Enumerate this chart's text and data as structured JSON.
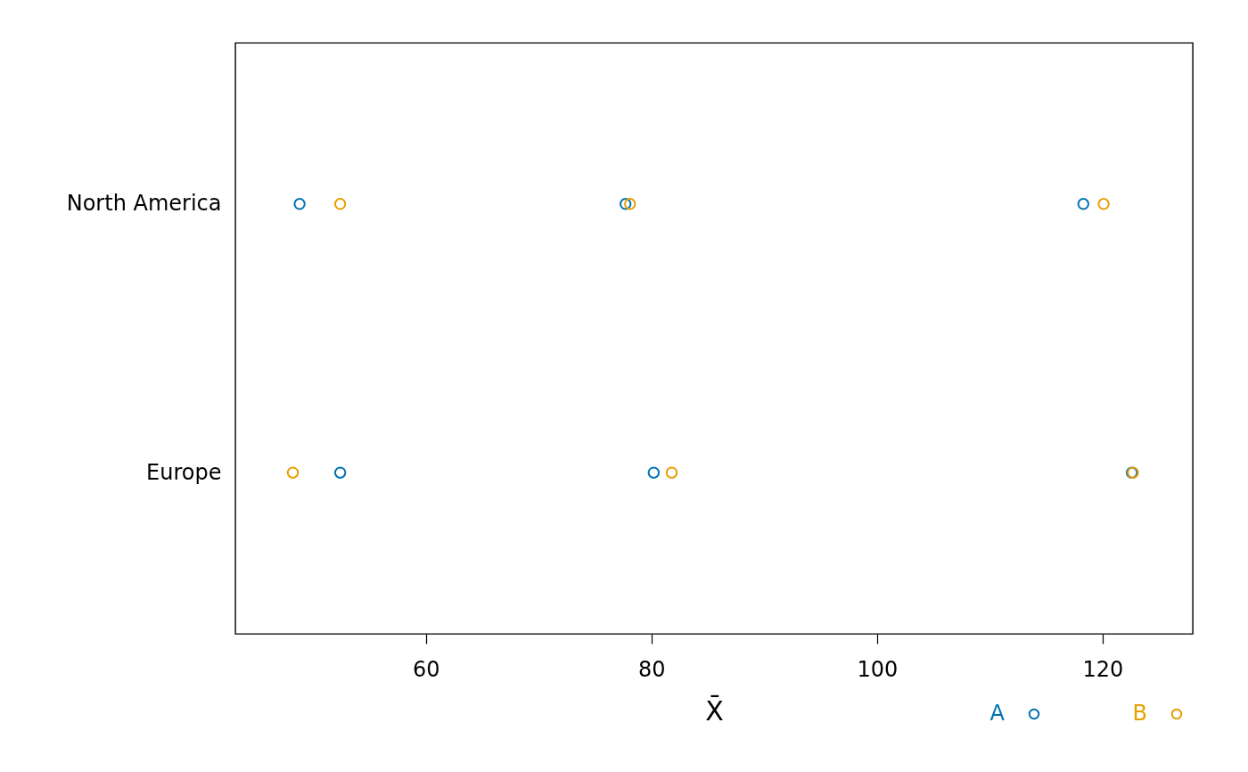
{
  "chart_data": {
    "type": "scatter",
    "orientation": "horizontal",
    "categories": [
      "North America",
      "Europe"
    ],
    "xlabel": "X̄",
    "xlim": [
      43.1,
      128.0
    ],
    "xticks": [
      60,
      80,
      100,
      120
    ],
    "series": [
      {
        "name": "A",
        "color": "#0072b2",
        "x": [
          "North America",
          "North America",
          "North America",
          "Europe",
          "Europe",
          "Europe"
        ],
        "values": [
          48.8,
          77.7,
          118.3,
          52.4,
          80.2,
          122.6
        ]
      },
      {
        "name": "B",
        "color": "#e69f00",
        "x": [
          "North America",
          "North America",
          "North America",
          "Europe",
          "Europe",
          "Europe"
        ],
        "values": [
          52.4,
          78.1,
          120.1,
          48.2,
          81.8,
          122.7
        ]
      }
    ],
    "marker": "circle",
    "legend": "bottom right"
  }
}
